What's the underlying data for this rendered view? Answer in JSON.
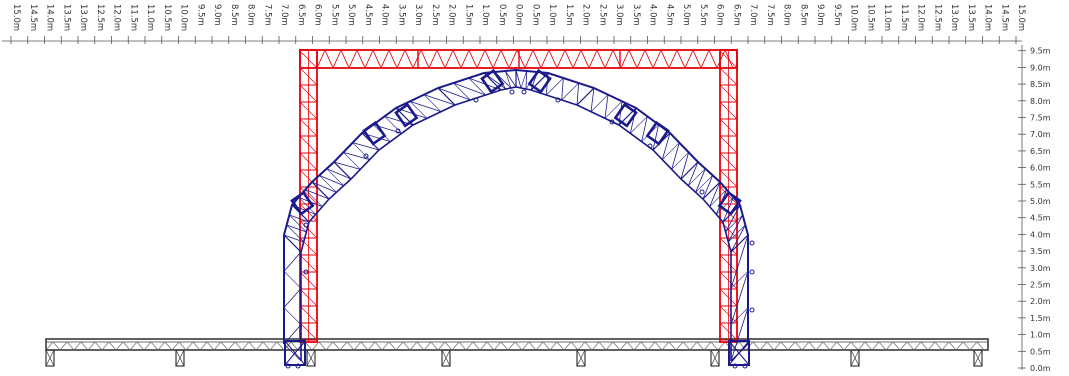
{
  "scale": {
    "top_labels": [
      "15.0m",
      "14.5m",
      "14.0m",
      "13.5m",
      "13.0m",
      "12.5m",
      "12.0m",
      "11.5m",
      "11.0m",
      "10.5m",
      "10.0m",
      "9.5m",
      "9.0m",
      "8.5m",
      "8.0m",
      "7.5m",
      "7.0m",
      "6.5m",
      "6.0m",
      "5.5m",
      "5.0m",
      "4.5m",
      "4.0m",
      "3.5m",
      "3.0m",
      "2.5m",
      "2.0m",
      "1.5m",
      "1.0m",
      "0.5m",
      "0.0m",
      "0.5m",
      "1.0m",
      "1.5m",
      "2.0m",
      "2.5m",
      "3.0m",
      "3.5m",
      "4.0m",
      "4.5m",
      "5.0m",
      "5.5m",
      "6.0m",
      "6.5m",
      "7.0m",
      "7.5m",
      "8.0m",
      "8.5m",
      "9.0m",
      "9.5m",
      "10.0m",
      "10.5m",
      "11.0m",
      "11.5m",
      "12.0m",
      "12.5m",
      "13.0m",
      "13.5m",
      "14.0m",
      "14.5m",
      "15.0m"
    ],
    "right_labels": [
      "9.5m",
      "9.0m",
      "8.5m",
      "8.0m",
      "7.5m",
      "7.0m",
      "6.5m",
      "6.0m",
      "5.5m",
      "5.0m",
      "4.5m",
      "4.0m",
      "3.5m",
      "3.0m",
      "2.5m",
      "2.0m",
      "1.5m",
      "1.0m",
      "0.5m",
      "0.0m"
    ]
  },
  "structure": {
    "stage_width_m": 28.0,
    "stage_height_m": 1.0,
    "red_frame": {
      "half_width_m": 6.5,
      "height_m": 9.5,
      "color": "#e8000b"
    },
    "blue_arch": {
      "half_width_m": 7.0,
      "apex_m": 9.0,
      "color": "#1a1a8c"
    },
    "stage_color": "#3a3a3a"
  }
}
